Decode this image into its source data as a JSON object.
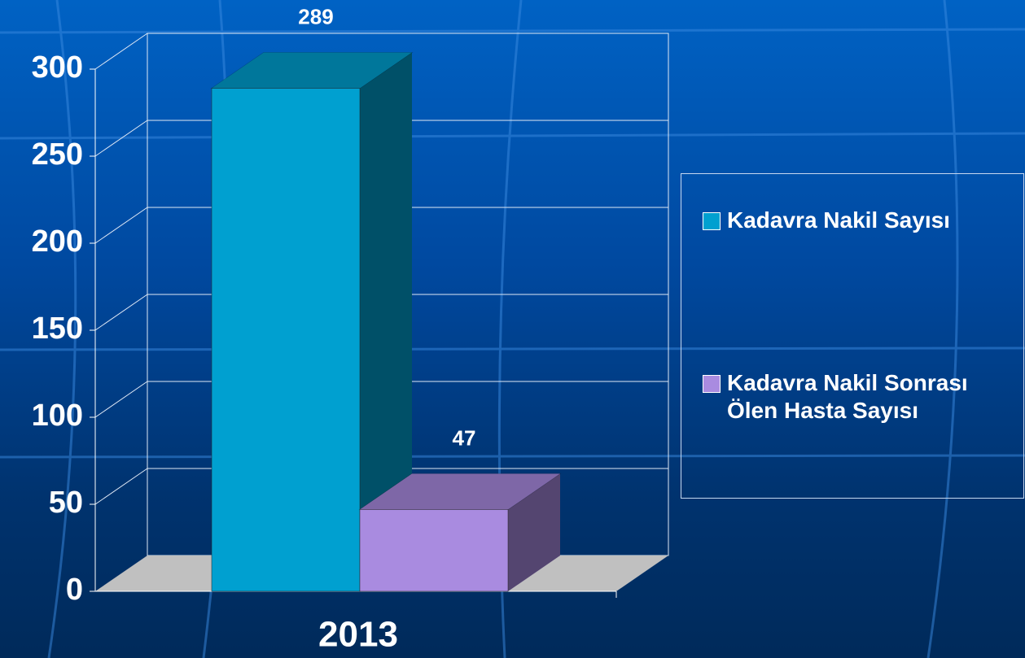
{
  "chart_data": {
    "type": "bar3d",
    "categories": [
      "2013"
    ],
    "series": [
      {
        "name": "Kadavra Nakil Sayısı",
        "color": "#00a0d0",
        "values": [
          289
        ]
      },
      {
        "name": "Kadavra Nakil Sonrası Ölen Hasta Sayısı",
        "color": "#a98be0",
        "values": [
          47
        ]
      }
    ],
    "ylim": [
      0,
      300
    ],
    "yticks": [
      0,
      50,
      100,
      150,
      200,
      250,
      300
    ],
    "grid": true,
    "legend": "right"
  }
}
